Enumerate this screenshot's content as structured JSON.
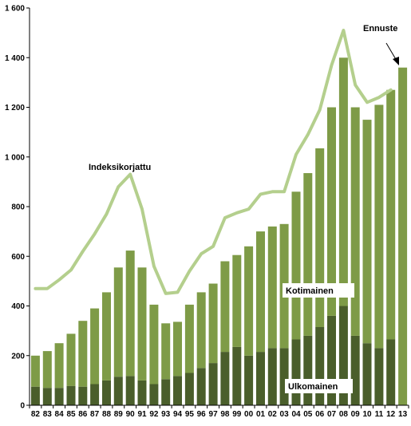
{
  "chart_data": {
    "type": "bar",
    "stacked": true,
    "ylim": [
      0,
      1600
    ],
    "y_ticks": [
      0,
      200,
      400,
      600,
      800,
      1000,
      1200,
      1400,
      1600
    ],
    "y_tick_labels": [
      "0",
      "200",
      "400",
      "600",
      "800",
      "1 000",
      "1 200",
      "1 400",
      "1 600"
    ],
    "categories": [
      "82",
      "83",
      "84",
      "85",
      "86",
      "87",
      "88",
      "89",
      "90",
      "91",
      "92",
      "93",
      "94",
      "95",
      "96",
      "97",
      "98",
      "99",
      "00",
      "01",
      "02",
      "03",
      "04",
      "05",
      "06",
      "07",
      "08",
      "09",
      "10",
      "11",
      "12",
      "13"
    ],
    "series": [
      {
        "name": "Ulkomainen",
        "color": "#4a5e2b",
        "values": [
          75,
          70,
          70,
          78,
          75,
          85,
          100,
          115,
          118,
          100,
          85,
          105,
          118,
          130,
          150,
          170,
          215,
          235,
          200,
          215,
          230,
          230,
          265,
          280,
          315,
          360,
          400,
          280,
          250,
          230,
          265,
          0
        ]
      },
      {
        "name": "Kotimainen",
        "color": "#7e9b47",
        "values": [
          125,
          148,
          180,
          210,
          265,
          305,
          355,
          440,
          505,
          455,
          320,
          225,
          218,
          275,
          305,
          320,
          365,
          370,
          440,
          485,
          490,
          500,
          595,
          655,
          720,
          840,
          1000,
          920,
          900,
          980,
          1005,
          0
        ]
      },
      {
        "name": "Ennuste",
        "color": "#7e9b47",
        "values": [
          0,
          0,
          0,
          0,
          0,
          0,
          0,
          0,
          0,
          0,
          0,
          0,
          0,
          0,
          0,
          0,
          0,
          0,
          0,
          0,
          0,
          0,
          0,
          0,
          0,
          0,
          0,
          0,
          0,
          0,
          0,
          1360
        ]
      },
      {
        "name": "Indeksikorjattu",
        "type": "line",
        "color": "#b4cf8d",
        "values": [
          470,
          470,
          505,
          545,
          620,
          690,
          770,
          880,
          930,
          790,
          560,
          450,
          455,
          540,
          610,
          640,
          755,
          775,
          790,
          850,
          860,
          860,
          1010,
          1090,
          1190,
          1370,
          1510,
          1290,
          1220,
          1240,
          1270,
          null
        ]
      }
    ],
    "annotations": {
      "line_label": "Indeksikorjattu",
      "forecast_label": "Ennuste",
      "upper_segment_label": "Kotimainen",
      "lower_segment_label": "Ulkomainen"
    },
    "grid": false,
    "legend": "none"
  }
}
